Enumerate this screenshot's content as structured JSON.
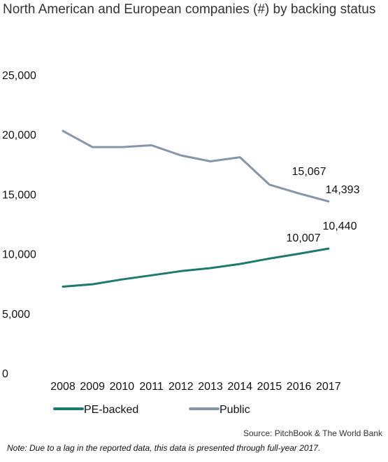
{
  "chart_data": {
    "type": "line",
    "title": "North American and European companies (#) by backing status",
    "categories": [
      "2008",
      "2009",
      "2010",
      "2011",
      "2012",
      "2013",
      "2014",
      "2015",
      "2016",
      "2017"
    ],
    "ylim": [
      0,
      25000
    ],
    "yticks": [
      "0",
      "5,000",
      "10,000",
      "15,000",
      "20,000",
      "25,000"
    ],
    "yticks_values": [
      0,
      5000,
      10000,
      15000,
      20000,
      25000
    ],
    "series": [
      {
        "name": "PE-backed",
        "color": "#1e7a6b",
        "values": [
          7250,
          7450,
          7850,
          8200,
          8550,
          8800,
          9150,
          9600,
          10007,
          10440
        ]
      },
      {
        "name": "Public",
        "color": "#8696a8",
        "values": [
          20300,
          18950,
          18950,
          19100,
          18250,
          17750,
          18100,
          15800,
          15067,
          14393
        ]
      }
    ],
    "data_labels": [
      "15,067",
      "14,393",
      "10,007",
      "10,440"
    ],
    "legend_position": "bottom-left"
  },
  "source": "Source: PitchBook & The World Bank",
  "note": "Note: Due to a lag in the reported data, this data is presented through full-year 2017."
}
